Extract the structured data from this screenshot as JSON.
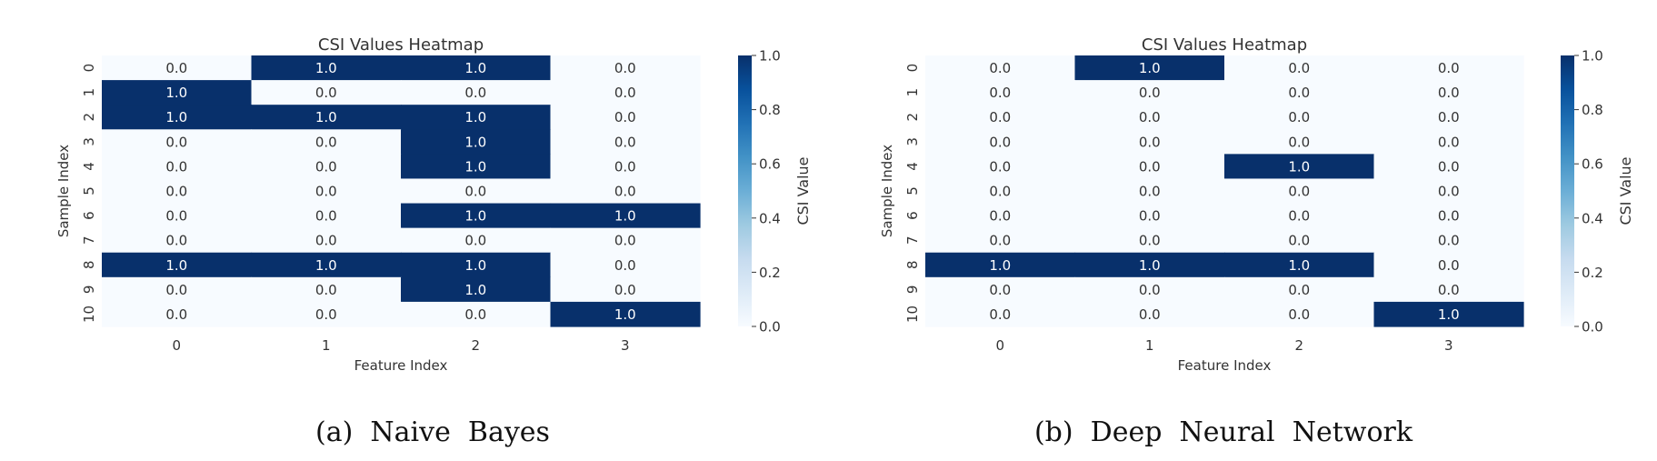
{
  "chart_data": [
    {
      "type": "heatmap",
      "title": "CSI Values Heatmap",
      "xlabel": "Feature Index",
      "ylabel": "Sample Index",
      "x_ticks": [
        "0",
        "1",
        "2",
        "3"
      ],
      "y_ticks": [
        "0",
        "1",
        "2",
        "3",
        "4",
        "5",
        "6",
        "7",
        "8",
        "9",
        "10"
      ],
      "values": [
        [
          0,
          1,
          1,
          0
        ],
        [
          1,
          0,
          0,
          0
        ],
        [
          1,
          1,
          1,
          0
        ],
        [
          0,
          0,
          1,
          0
        ],
        [
          0,
          0,
          1,
          0
        ],
        [
          0,
          0,
          0,
          0
        ],
        [
          0,
          0,
          1,
          1
        ],
        [
          0,
          0,
          0,
          0
        ],
        [
          1,
          1,
          1,
          0
        ],
        [
          0,
          0,
          1,
          0
        ],
        [
          0,
          0,
          0,
          1
        ]
      ],
      "colorbar": {
        "label": "CSI Value",
        "range": [
          0.0,
          1.0
        ],
        "ticks": [
          "0.0",
          "0.2",
          "0.4",
          "0.6",
          "0.8",
          "1.0"
        ],
        "colormap": "Blues",
        "low_color": "#f7fbff",
        "high_color": "#08306b"
      },
      "caption": "(a)  Naive  Bayes"
    },
    {
      "type": "heatmap",
      "title": "CSI Values Heatmap",
      "xlabel": "Feature Index",
      "ylabel": "Sample Index",
      "x_ticks": [
        "0",
        "1",
        "2",
        "3"
      ],
      "y_ticks": [
        "0",
        "1",
        "2",
        "3",
        "4",
        "5",
        "6",
        "7",
        "8",
        "9",
        "10"
      ],
      "values": [
        [
          0,
          1,
          0,
          0
        ],
        [
          0,
          0,
          0,
          0
        ],
        [
          0,
          0,
          0,
          0
        ],
        [
          0,
          0,
          0,
          0
        ],
        [
          0,
          0,
          1,
          0
        ],
        [
          0,
          0,
          0,
          0
        ],
        [
          0,
          0,
          0,
          0
        ],
        [
          0,
          0,
          0,
          0
        ],
        [
          1,
          1,
          1,
          0
        ],
        [
          0,
          0,
          0,
          0
        ],
        [
          0,
          0,
          0,
          1
        ]
      ],
      "colorbar": {
        "label": "CSI Value",
        "range": [
          0.0,
          1.0
        ],
        "ticks": [
          "0.0",
          "0.2",
          "0.4",
          "0.6",
          "0.8",
          "1.0"
        ],
        "colormap": "Blues",
        "low_color": "#f7fbff",
        "high_color": "#08306b"
      },
      "caption": "(b)  Deep  Neural  Network"
    }
  ]
}
